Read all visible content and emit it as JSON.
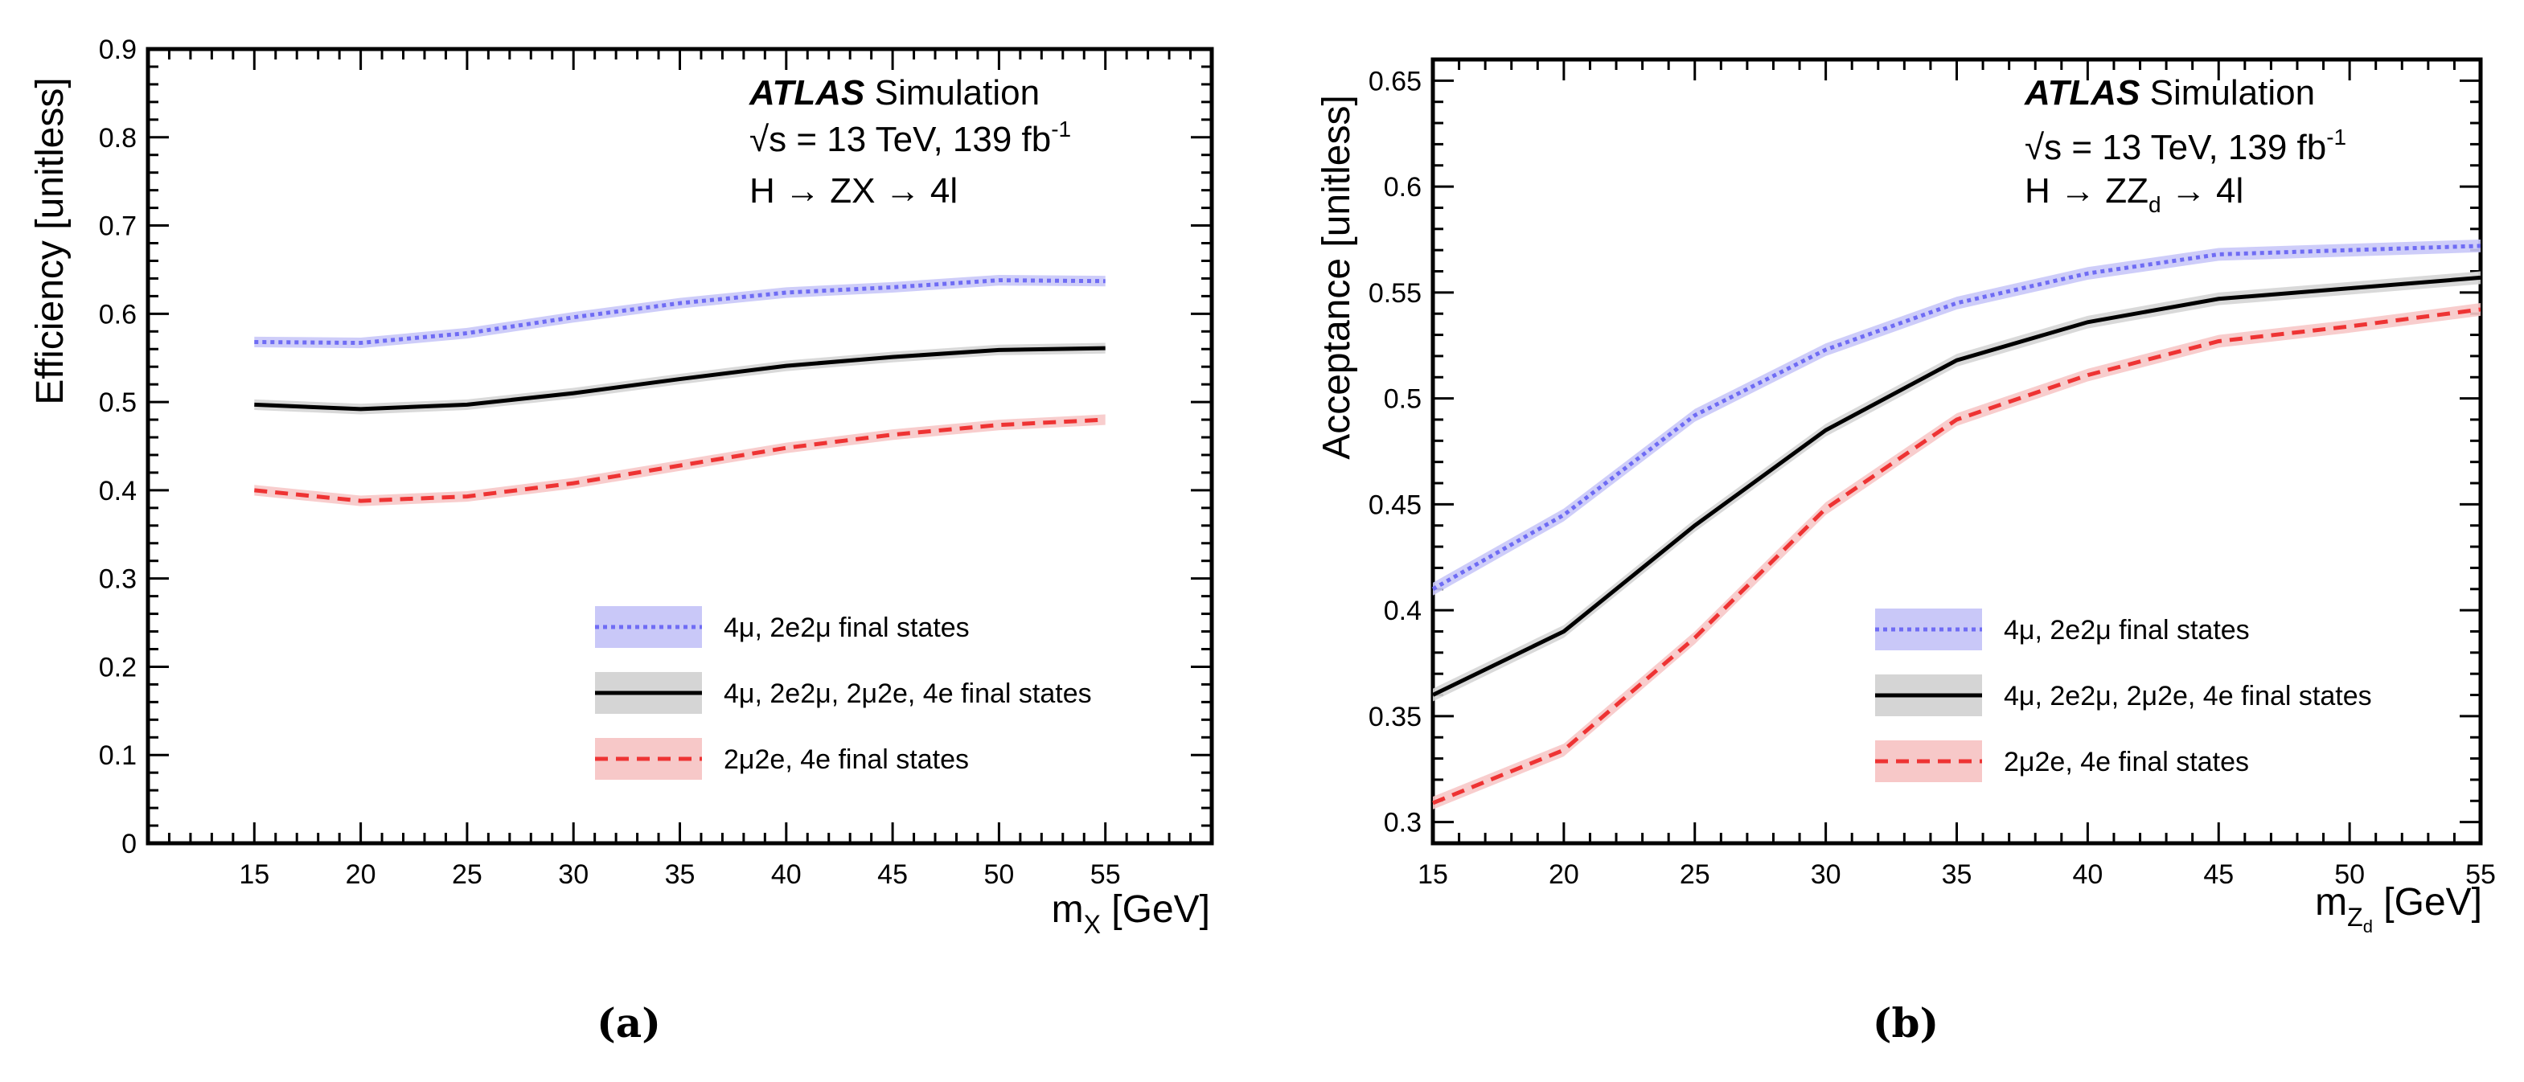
{
  "chart_data": [
    {
      "type": "line",
      "panel_label": "(a)",
      "title": "",
      "xlabel_prefix": "m",
      "xlabel_sub": "X",
      "xlabel_unit": " [GeV]",
      "ylabel": "Efficiency [unitless]",
      "xlim": [
        10,
        60
      ],
      "ylim": [
        0,
        0.9
      ],
      "xticks": [
        15,
        20,
        25,
        30,
        35,
        40,
        45,
        50,
        55
      ],
      "yticks": [
        0,
        0.1,
        0.2,
        0.3,
        0.4,
        0.5,
        0.6,
        0.7,
        0.8,
        0.9
      ],
      "annotation": {
        "atlas": "ATLAS",
        "simulation": " Simulation",
        "line2_prefix": "√s = 13 TeV, 139 fb",
        "line2_sup": "-1",
        "line3": "H → ZX → 4l",
        "line3_sub": ""
      },
      "x": [
        15,
        20,
        25,
        30,
        35,
        40,
        45,
        50,
        55
      ],
      "series": [
        {
          "name": "4μ, 2e2μ final states",
          "color": "#6f6cf4",
          "band": "#c9c8f8",
          "style": "dotted",
          "values": [
            0.568,
            0.567,
            0.578,
            0.596,
            0.612,
            0.624,
            0.63,
            0.638,
            0.637
          ]
        },
        {
          "name": "4μ, 2e2μ, 2μ2e, 4e final states",
          "color": "#000000",
          "band": "#d5d5d5",
          "style": "solid",
          "values": [
            0.497,
            0.492,
            0.497,
            0.51,
            0.526,
            0.541,
            0.551,
            0.559,
            0.561
          ]
        },
        {
          "name": "2μ2e, 4e final states",
          "color": "#ee3333",
          "band": "#f7c8c8",
          "style": "dashed",
          "values": [
            0.4,
            0.388,
            0.393,
            0.408,
            0.428,
            0.448,
            0.463,
            0.474,
            0.48
          ]
        }
      ]
    },
    {
      "type": "line",
      "panel_label": "(b)",
      "title": "",
      "xlabel_prefix": "m",
      "xlabel_sub": "Z",
      "xlabel_subsub": "d",
      "xlabel_unit": " [GeV]",
      "ylabel": "Acceptance [unitless]",
      "xlim": [
        15,
        55
      ],
      "ylim": [
        0.29,
        0.66
      ],
      "xticks": [
        15,
        20,
        25,
        30,
        35,
        40,
        45,
        50,
        55
      ],
      "yticks": [
        0.3,
        0.35,
        0.4,
        0.45,
        0.5,
        0.55,
        0.6,
        0.65
      ],
      "annotation": {
        "atlas": "ATLAS",
        "simulation": " Simulation",
        "line2_prefix": "√s = 13 TeV, 139 fb",
        "line2_sup": "-1",
        "line3": "H → ZZ",
        "line3_sub": "d",
        "line3_suffix": " → 4l"
      },
      "x": [
        15,
        20,
        25,
        30,
        35,
        40,
        45,
        50,
        55
      ],
      "series": [
        {
          "name": "4μ, 2e2μ final states",
          "color": "#6f6cf4",
          "band": "#c9c8f8",
          "style": "dotted",
          "values": [
            0.41,
            0.445,
            0.492,
            0.523,
            0.545,
            0.559,
            0.568,
            0.57,
            0.572
          ]
        },
        {
          "name": "4μ, 2e2μ, 2μ2e, 4e final states",
          "color": "#000000",
          "band": "#d5d5d5",
          "style": "solid",
          "values": [
            0.36,
            0.39,
            0.44,
            0.485,
            0.518,
            0.536,
            0.547,
            0.552,
            0.557
          ]
        },
        {
          "name": "2μ2e, 4e final states",
          "color": "#ee3333",
          "band": "#f7c8c8",
          "style": "dashed",
          "values": [
            0.309,
            0.334,
            0.387,
            0.448,
            0.49,
            0.511,
            0.527,
            0.534,
            0.542
          ]
        }
      ]
    }
  ]
}
